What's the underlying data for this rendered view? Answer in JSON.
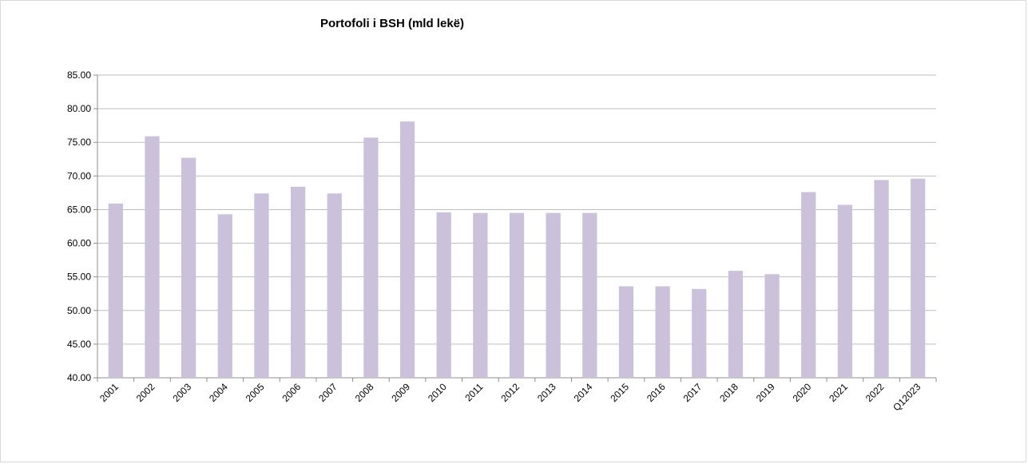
{
  "chart_data": {
    "type": "bar",
    "title": "Portofoli i BSH (mld lekë)",
    "xlabel": "",
    "ylabel": "",
    "categories": [
      "2001",
      "2002",
      "2003",
      "2004",
      "2005",
      "2006",
      "2007",
      "2008",
      "2009",
      "2010",
      "2011",
      "2012",
      "2013",
      "2014",
      "2015",
      "2016",
      "2017",
      "2018",
      "2019",
      "2020",
      "2021",
      "2022",
      "Q12023"
    ],
    "values": [
      65.9,
      75.9,
      72.7,
      64.3,
      67.4,
      68.4,
      67.4,
      75.7,
      78.1,
      64.6,
      64.5,
      64.5,
      64.5,
      64.5,
      53.6,
      53.6,
      53.2,
      55.9,
      55.4,
      67.6,
      65.7,
      69.4,
      69.6
    ],
    "ylim": [
      40,
      85
    ],
    "yticks": [
      "40.00",
      "45.00",
      "50.00",
      "55.00",
      "60.00",
      "65.00",
      "70.00",
      "75.00",
      "80.00",
      "85.00"
    ],
    "grid": true,
    "colors": {
      "bar": "#ccc1da",
      "grid": "#bfbfbf",
      "axis": "#8c8c8c"
    }
  }
}
